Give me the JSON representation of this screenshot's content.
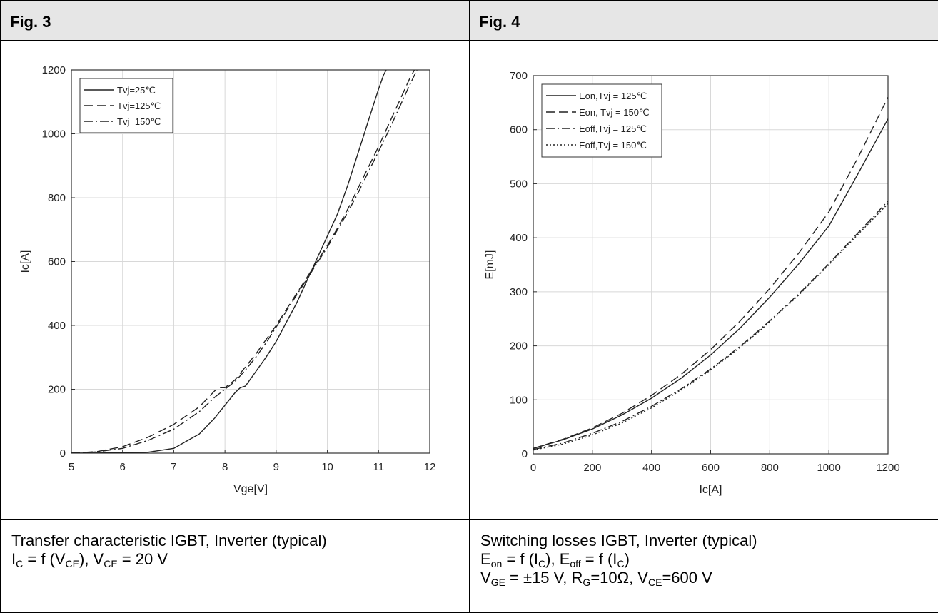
{
  "panels": [
    {
      "header": "Fig. 3",
      "caption": {
        "line1": "Transfer characteristic IGBT, Inverter (typical)",
        "line2": [
          "I",
          "C",
          " = f (V",
          "CE",
          "), V",
          "CE",
          " = 20 V"
        ]
      }
    },
    {
      "header": "Fig. 4",
      "caption": {
        "line1": "Switching losses IGBT, Inverter (typical)",
        "line2": [
          "E",
          "on",
          " = f (I",
          "C",
          "), E",
          "off",
          " = f (I",
          "C",
          ")"
        ],
        "line3": [
          "V",
          "GE",
          " = ±15 V, R",
          "G",
          "=10Ω, V",
          "CE",
          "=600 V"
        ]
      }
    }
  ],
  "chart_data": [
    {
      "type": "line",
      "title": "",
      "xlabel": "Vge[V]",
      "ylabel": "Ic[A]",
      "xlim": [
        5,
        12
      ],
      "ylim": [
        0,
        1200
      ],
      "xticks": [
        5,
        6,
        7,
        8,
        9,
        10,
        11,
        12
      ],
      "yticks": [
        0,
        200,
        400,
        600,
        800,
        1000,
        1200
      ],
      "grid": true,
      "legend_position": "top-left",
      "series": [
        {
          "name": "Tvj=25℃",
          "style": "solid",
          "x": [
            5.0,
            6.0,
            6.5,
            7.0,
            7.5,
            7.8,
            8.0,
            8.2,
            8.3,
            8.4,
            8.6,
            8.8,
            9.0,
            9.2,
            9.4,
            9.6,
            9.8,
            10.0,
            10.2,
            10.4,
            10.6,
            10.7,
            10.8,
            10.9,
            11.0,
            11.1,
            11.15
          ],
          "y": [
            0,
            1,
            3,
            15,
            60,
            110,
            150,
            190,
            205,
            210,
            255,
            300,
            350,
            410,
            470,
            540,
            610,
            680,
            750,
            840,
            940,
            990,
            1040,
            1090,
            1140,
            1185,
            1200
          ]
        },
        {
          "name": "Tvj=125℃",
          "style": "dashed",
          "x": [
            5.0,
            5.5,
            6.0,
            6.5,
            7.0,
            7.5,
            7.8,
            7.9,
            8.0,
            8.2,
            8.4,
            8.6,
            8.8,
            9.0,
            9.2,
            9.4,
            9.6,
            9.8,
            10.0,
            10.2,
            10.4,
            10.6,
            10.8,
            11.0,
            11.2,
            11.4,
            11.6,
            11.7
          ],
          "y": [
            0,
            5,
            20,
            50,
            90,
            145,
            195,
            205,
            205,
            230,
            270,
            310,
            355,
            400,
            450,
            500,
            550,
            600,
            650,
            705,
            765,
            830,
            895,
            960,
            1030,
            1100,
            1170,
            1200
          ]
        },
        {
          "name": "Tvj=150℃",
          "style": "dashdot",
          "x": [
            5.0,
            5.5,
            6.0,
            6.5,
            7.0,
            7.5,
            7.8,
            8.0,
            8.2,
            8.4,
            8.6,
            8.8,
            9.0,
            9.2,
            9.4,
            9.6,
            9.8,
            10.0,
            10.2,
            10.4,
            10.6,
            10.8,
            11.0,
            11.2,
            11.4,
            11.6,
            11.75
          ],
          "y": [
            0,
            4,
            15,
            40,
            75,
            130,
            175,
            200,
            225,
            260,
            300,
            345,
            395,
            445,
            495,
            545,
            595,
            645,
            700,
            755,
            815,
            880,
            945,
            1010,
            1080,
            1150,
            1200
          ]
        }
      ]
    },
    {
      "type": "line",
      "title": "",
      "xlabel": "Ic[A]",
      "ylabel": "E[mJ]",
      "xlim": [
        0,
        1200
      ],
      "ylim": [
        0,
        700
      ],
      "xticks": [
        0,
        200,
        400,
        600,
        800,
        1000,
        1200
      ],
      "yticks": [
        0,
        100,
        200,
        300,
        400,
        500,
        600,
        700
      ],
      "grid": true,
      "legend_position": "top-left",
      "series": [
        {
          "name": "Eon,Tvj = 125℃",
          "style": "solid",
          "x": [
            0,
            100,
            200,
            300,
            400,
            500,
            600,
            700,
            800,
            900,
            1000,
            1100,
            1200
          ],
          "y": [
            10,
            26,
            46,
            72,
            103,
            140,
            183,
            233,
            290,
            353,
            422,
            520,
            620
          ]
        },
        {
          "name": "Eon, Tvj = 150℃",
          "style": "dashed",
          "x": [
            0,
            100,
            200,
            300,
            400,
            500,
            600,
            700,
            800,
            900,
            1000,
            1100,
            1200
          ],
          "y": [
            10,
            27,
            48,
            75,
            108,
            147,
            193,
            246,
            306,
            373,
            448,
            550,
            660
          ]
        },
        {
          "name": "Eoff,Tvj = 125℃",
          "style": "dashdot",
          "x": [
            0,
            100,
            200,
            300,
            400,
            500,
            600,
            700,
            800,
            900,
            1000,
            1100,
            1200
          ],
          "y": [
            8,
            20,
            38,
            60,
            88,
            120,
            157,
            199,
            246,
            297,
            352,
            410,
            468
          ]
        },
        {
          "name": "Eoff,Tvj = 150℃",
          "style": "dotted",
          "x": [
            0,
            100,
            200,
            300,
            400,
            500,
            600,
            700,
            800,
            900,
            1000,
            1100,
            1200
          ],
          "y": [
            7,
            18,
            35,
            57,
            85,
            118,
            155,
            197,
            244,
            295,
            350,
            407,
            463
          ]
        }
      ]
    }
  ]
}
